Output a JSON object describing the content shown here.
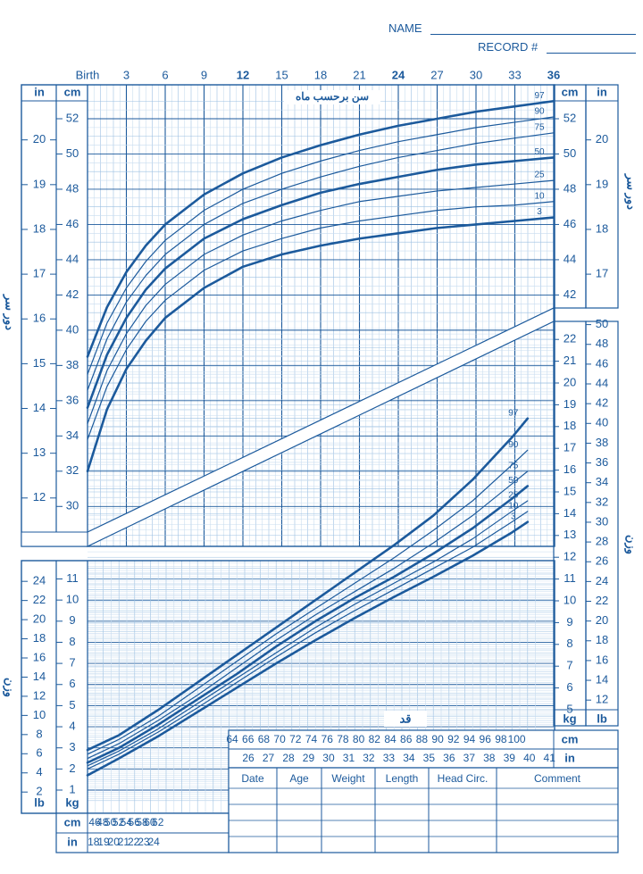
{
  "header": {
    "name_label": "NAME",
    "record_label": "RECORD #"
  },
  "colors": {
    "ink": "#1c5a9c",
    "grid_light": "#9cc0e2",
    "grid_faint": "#c8dcef",
    "paper": "#ffffff"
  },
  "age_axis": {
    "title": "سن برحسب ماه",
    "ticks": [
      "Birth",
      "3",
      "6",
      "9",
      "12",
      "15",
      "18",
      "21",
      "24",
      "27",
      "30",
      "33",
      "36"
    ],
    "bold_ticks": [
      "12",
      "24",
      "36"
    ]
  },
  "head_side_title": "دور سر",
  "weight_side_title": "وزن",
  "length_title": "قد",
  "unit_labels": {
    "cm": "cm",
    "in": "in",
    "kg": "kg",
    "lb": "lb"
  },
  "head_cm_ticks": [
    "52",
    "50",
    "48",
    "46",
    "44",
    "42",
    "40",
    "38",
    "36",
    "34",
    "32",
    "30"
  ],
  "head_in_ticks": [
    "20",
    "19",
    "18",
    "17",
    "16",
    "15",
    "14",
    "13",
    "12"
  ],
  "head_right_cm_ticks": [
    "52",
    "50",
    "48",
    "46",
    "44",
    "42"
  ],
  "head_right_in_ticks": [
    "20",
    "19",
    "18",
    "17"
  ],
  "weight_left_kg_ticks": [
    "11",
    "10",
    "9",
    "8",
    "7",
    "6",
    "5",
    "4",
    "3",
    "2",
    "1"
  ],
  "weight_left_lb_ticks": [
    "24",
    "22",
    "20",
    "18",
    "16",
    "14",
    "12",
    "10",
    "8",
    "6",
    "4",
    "2"
  ],
  "weight_right_kg_ticks": [
    "22",
    "21",
    "20",
    "19",
    "18",
    "17",
    "16",
    "15",
    "14",
    "13",
    "12",
    "11",
    "10",
    "9",
    "8",
    "7",
    "6",
    "5"
  ],
  "weight_right_lb_ticks": [
    "50",
    "48",
    "46",
    "44",
    "42",
    "40",
    "38",
    "36",
    "34",
    "32",
    "30",
    "28",
    "26",
    "24",
    "22",
    "20",
    "18",
    "16",
    "14",
    "12"
  ],
  "length_small_cm": [
    "46",
    "48",
    "50",
    "52",
    "54",
    "56",
    "58",
    "60",
    "62"
  ],
  "length_small_in": [
    "18",
    "19",
    "20",
    "21",
    "22",
    "23",
    "24"
  ],
  "length_big_cm": [
    "64",
    "66",
    "68",
    "70",
    "72",
    "74",
    "76",
    "78",
    "80",
    "82",
    "84",
    "86",
    "88",
    "90",
    "92",
    "94",
    "96",
    "98",
    "100"
  ],
  "length_big_in": [
    "26",
    "27",
    "28",
    "29",
    "30",
    "31",
    "32",
    "33",
    "34",
    "35",
    "36",
    "37",
    "38",
    "39",
    "40",
    "41"
  ],
  "table": {
    "columns": [
      "Date",
      "Age",
      "Weight",
      "Length",
      "Head Circ.",
      "Comment"
    ]
  },
  "chart_data": [
    {
      "type": "line",
      "x_label": "سن برحسب ماه",
      "y_label": "دور سر",
      "x_unit": "months",
      "y_unit": "cm",
      "xlim": [
        0,
        36
      ],
      "ylim": [
        30,
        53
      ],
      "x": [
        0,
        1.5,
        3,
        4.5,
        6,
        9,
        12,
        15,
        18,
        21,
        24,
        27,
        30,
        33,
        36
      ],
      "series": [
        {
          "name": "97",
          "values": [
            38.5,
            41.3,
            43.3,
            44.8,
            46.0,
            47.7,
            48.9,
            49.8,
            50.5,
            51.1,
            51.6,
            52.0,
            52.4,
            52.7,
            53.0
          ]
        },
        {
          "name": "90",
          "values": [
            37.5,
            40.4,
            42.4,
            43.9,
            45.1,
            46.8,
            48.0,
            48.9,
            49.6,
            50.2,
            50.7,
            51.1,
            51.5,
            51.8,
            52.1
          ]
        },
        {
          "name": "75",
          "values": [
            36.6,
            39.5,
            41.6,
            43.1,
            44.3,
            46.0,
            47.2,
            48.0,
            48.7,
            49.3,
            49.8,
            50.2,
            50.6,
            50.9,
            51.2
          ]
        },
        {
          "name": "50",
          "values": [
            35.6,
            38.6,
            40.7,
            42.3,
            43.5,
            45.2,
            46.3,
            47.1,
            47.8,
            48.3,
            48.7,
            49.1,
            49.4,
            49.6,
            49.8
          ]
        },
        {
          "name": "25",
          "values": [
            34.7,
            37.7,
            39.8,
            41.4,
            42.6,
            44.3,
            45.4,
            46.2,
            46.8,
            47.3,
            47.6,
            47.9,
            48.1,
            48.3,
            48.5
          ]
        },
        {
          "name": "10",
          "values": [
            33.8,
            36.8,
            38.9,
            40.5,
            41.7,
            43.4,
            44.5,
            45.2,
            45.8,
            46.2,
            46.5,
            46.8,
            47.0,
            47.1,
            47.3
          ]
        },
        {
          "name": "3",
          "values": [
            32.0,
            35.5,
            37.8,
            39.4,
            40.7,
            42.4,
            43.6,
            44.3,
            44.8,
            45.2,
            45.5,
            45.8,
            46.0,
            46.2,
            46.4
          ]
        }
      ]
    },
    {
      "type": "line",
      "x_label": "قد",
      "y_label": "وزن",
      "x_unit": "cm",
      "y_unit": "kg",
      "xlim": [
        45,
        103
      ],
      "ylim": [
        0.5,
        22.5
      ],
      "x": [
        46,
        50,
        55,
        60,
        65,
        70,
        75,
        80,
        85,
        90,
        95,
        100,
        102
      ],
      "series": [
        {
          "name": "97",
          "values": [
            2.9,
            3.6,
            4.8,
            6.1,
            7.4,
            8.7,
            10.0,
            11.3,
            12.6,
            14.0,
            15.7,
            17.7,
            18.6
          ]
        },
        {
          "name": "90",
          "values": [
            2.7,
            3.4,
            4.5,
            5.8,
            7.1,
            8.4,
            9.6,
            10.8,
            12.0,
            13.3,
            14.7,
            16.4,
            17.1
          ]
        },
        {
          "name": "75",
          "values": [
            2.5,
            3.2,
            4.3,
            5.5,
            6.8,
            8.1,
            9.3,
            10.4,
            11.5,
            12.7,
            14.0,
            15.5,
            16.1
          ]
        },
        {
          "name": "50",
          "values": [
            2.3,
            3.0,
            4.1,
            5.3,
            6.5,
            7.8,
            9.0,
            10.1,
            11.1,
            12.2,
            13.4,
            14.8,
            15.4
          ]
        },
        {
          "name": "25",
          "values": [
            2.15,
            2.85,
            3.9,
            5.1,
            6.3,
            7.5,
            8.7,
            9.8,
            10.8,
            11.8,
            12.9,
            14.2,
            14.7
          ]
        },
        {
          "name": "10",
          "values": [
            2.0,
            2.7,
            3.75,
            4.9,
            6.1,
            7.3,
            8.45,
            9.5,
            10.5,
            11.5,
            12.5,
            13.7,
            14.2
          ]
        },
        {
          "name": "3",
          "values": [
            1.7,
            2.5,
            3.55,
            4.7,
            5.85,
            7.0,
            8.1,
            9.15,
            10.15,
            11.1,
            12.1,
            13.2,
            13.7
          ]
        }
      ]
    }
  ]
}
